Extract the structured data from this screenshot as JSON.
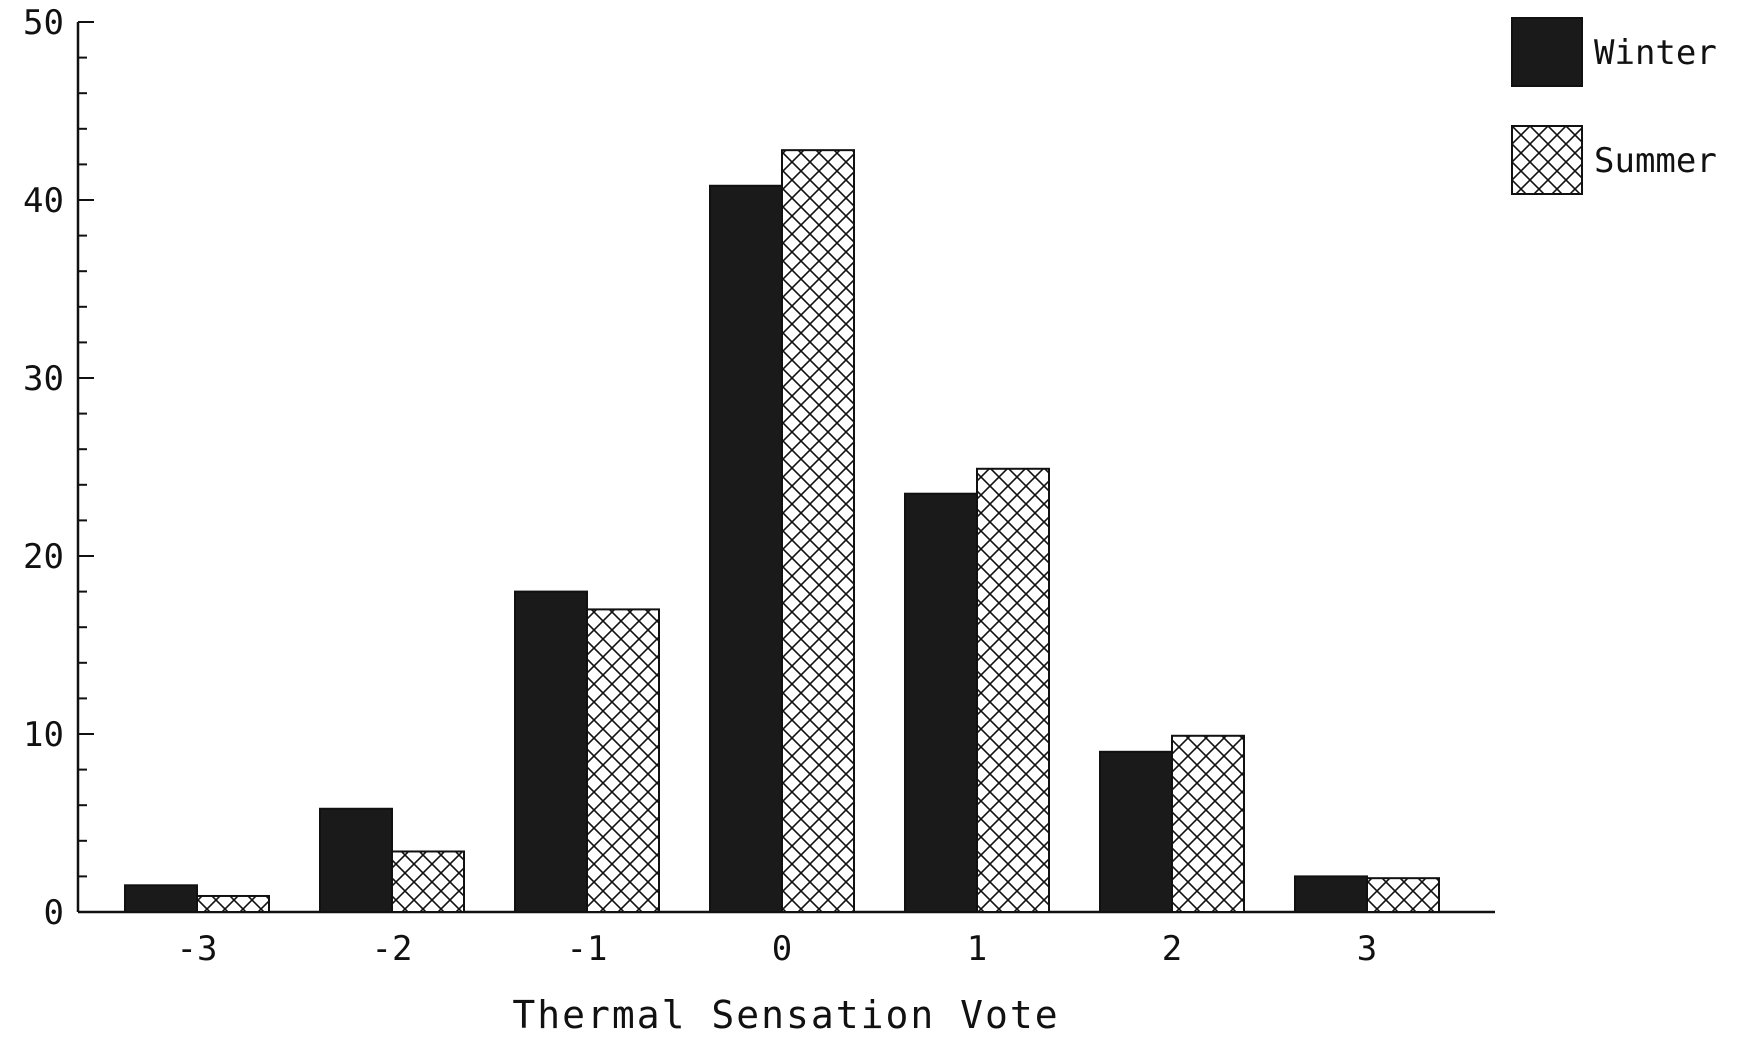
{
  "chart_data": {
    "type": "bar",
    "title": "",
    "xlabel": "Thermal Sensation Vote",
    "ylabel": "",
    "categories": [
      "-3",
      "-2",
      "-1",
      "0",
      "1",
      "2",
      "3"
    ],
    "series": [
      {
        "name": "Winter",
        "values": [
          1.5,
          5.8,
          18.0,
          40.8,
          23.5,
          9.0,
          2.0
        ],
        "fill": "#1a1a1a",
        "pattern": "solid"
      },
      {
        "name": "Summer",
        "values": [
          0.9,
          3.4,
          17.0,
          42.8,
          24.9,
          9.9,
          1.9
        ],
        "fill": "#ffffff",
        "pattern": "crosshatch"
      }
    ],
    "ylim": [
      0,
      50
    ],
    "yticks": [
      "0",
      "10",
      "20",
      "30",
      "40",
      "50"
    ],
    "grid": false,
    "legend_placement": "top-right"
  }
}
